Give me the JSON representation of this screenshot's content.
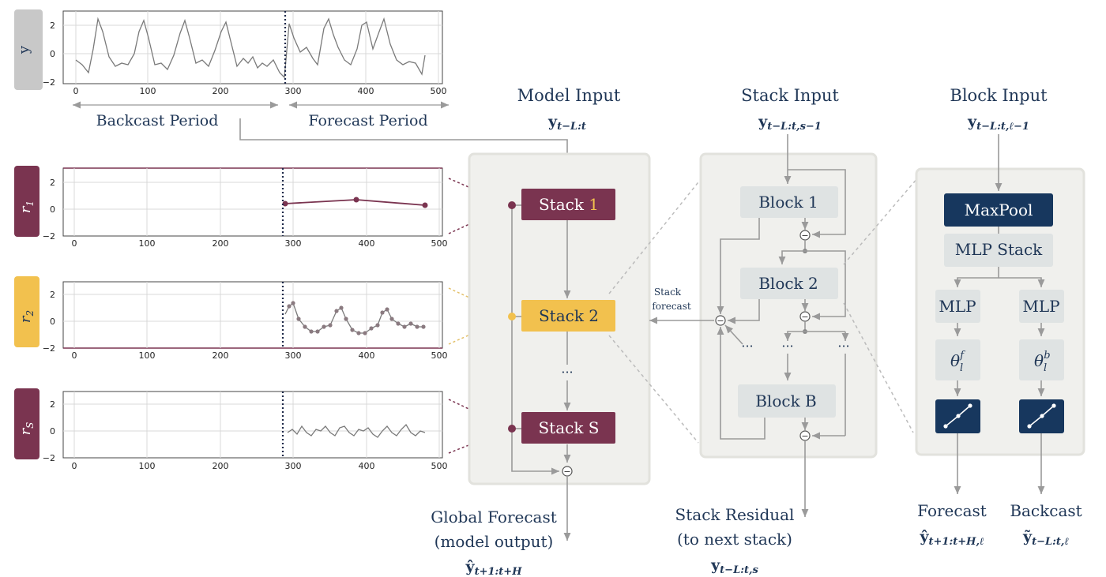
{
  "colors": {
    "maroon": "#7a3450",
    "gold": "#f2c14e",
    "navy": "#17375e",
    "panel": "#f0f0ed",
    "block": "#dfe3e3",
    "arrow": "#9a9a9a",
    "text": "#1f3656"
  },
  "left_plots": {
    "y_label": "y",
    "r1_label": "r",
    "r1_sub": "1",
    "r2_label": "r",
    "r2_sub": "2",
    "rs_label": "r",
    "rs_sub": "S",
    "y_ticks": [
      "2",
      "0",
      "−2"
    ],
    "x_ticks": [
      "0",
      "100",
      "200",
      "300",
      "400",
      "500"
    ]
  },
  "periods": {
    "backcast": "Backcast Period",
    "forecast": "Forecast Period"
  },
  "model": {
    "title": "Model Input",
    "input_math": "y",
    "input_sub": "t−L:t",
    "stack1_a": "Stack ",
    "stack1_b": "1",
    "stack2": "Stack 2",
    "dots": "···",
    "stacks": "Stack S",
    "output_title1": "Global Forecast",
    "output_title2": "(model output)",
    "output_math": "ŷ",
    "output_sub": "t+1:t+H"
  },
  "stack": {
    "title": "Stack Input",
    "input_math": "y",
    "input_sub": "t−L:t,s−1",
    "block1": "Block 1",
    "block2": "Block 2",
    "blockb": "Block B",
    "dots": "···",
    "forecast_label1": "Stack",
    "forecast_label2": "forecast",
    "residual_title1": "Stack Residual",
    "residual_title2": "(to next stack)",
    "residual_math": "y",
    "residual_sub": "t−L:t,s"
  },
  "block": {
    "title": "Block Input",
    "input_math": "y",
    "input_sub": "t−L:t,ℓ−1",
    "maxpool": "MaxPool",
    "mlpstack": "MLP Stack",
    "mlp_left": "MLP",
    "mlp_right": "MLP",
    "theta": "θ",
    "theta_sub": "l",
    "theta_f": "f",
    "theta_b": "b",
    "forecast_title": "Forecast",
    "forecast_math": "ŷ",
    "forecast_sub": "t+1:t+H,ℓ",
    "backcast_title": "Backcast",
    "backcast_math": "ỹ",
    "backcast_sub": "t−L:t,ℓ"
  },
  "minus": "−"
}
